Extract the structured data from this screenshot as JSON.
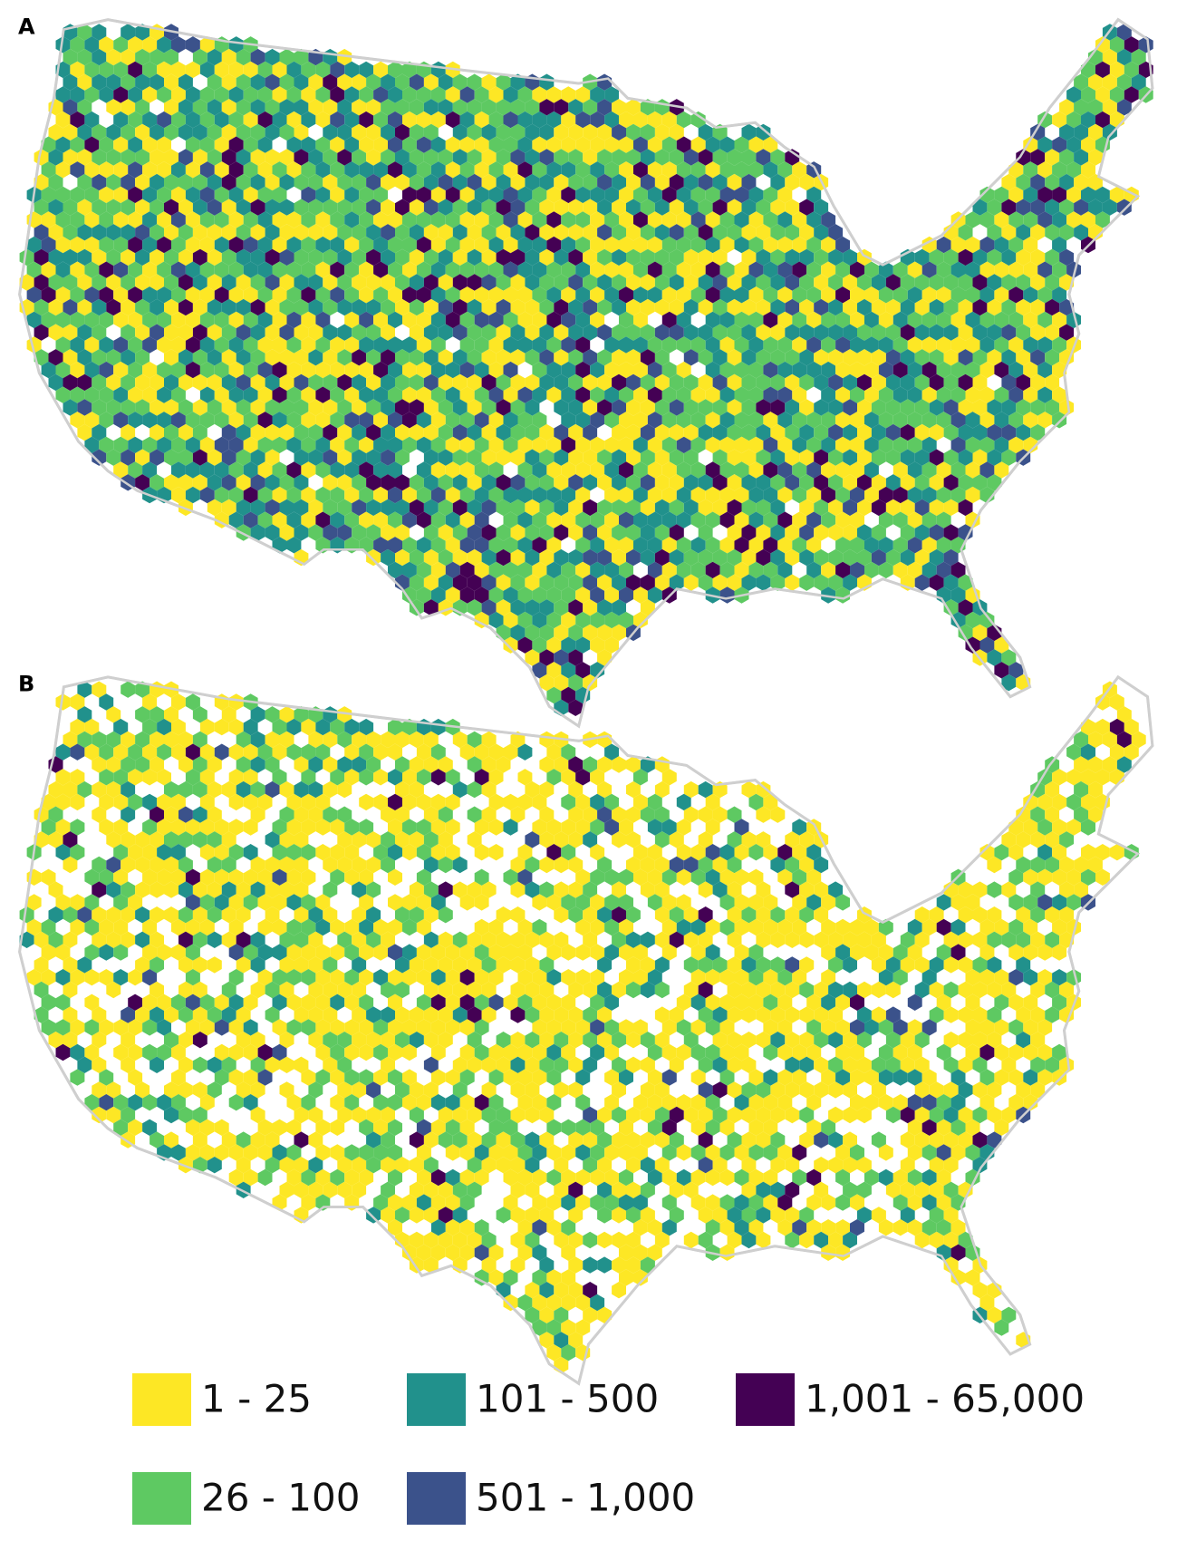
{
  "panels": [
    {
      "label": "A"
    },
    {
      "label": "B"
    }
  ],
  "legend": {
    "items": [
      {
        "label": "1 - 25",
        "color": "#fde725"
      },
      {
        "label": "26 - 100",
        "color": "#5ec962"
      },
      {
        "label": "101 - 500",
        "color": "#21918c"
      },
      {
        "label": "501 - 1,000",
        "color": "#3b528b"
      },
      {
        "label": "1,001 - 65,000",
        "color": "#440154"
      }
    ]
  }
}
